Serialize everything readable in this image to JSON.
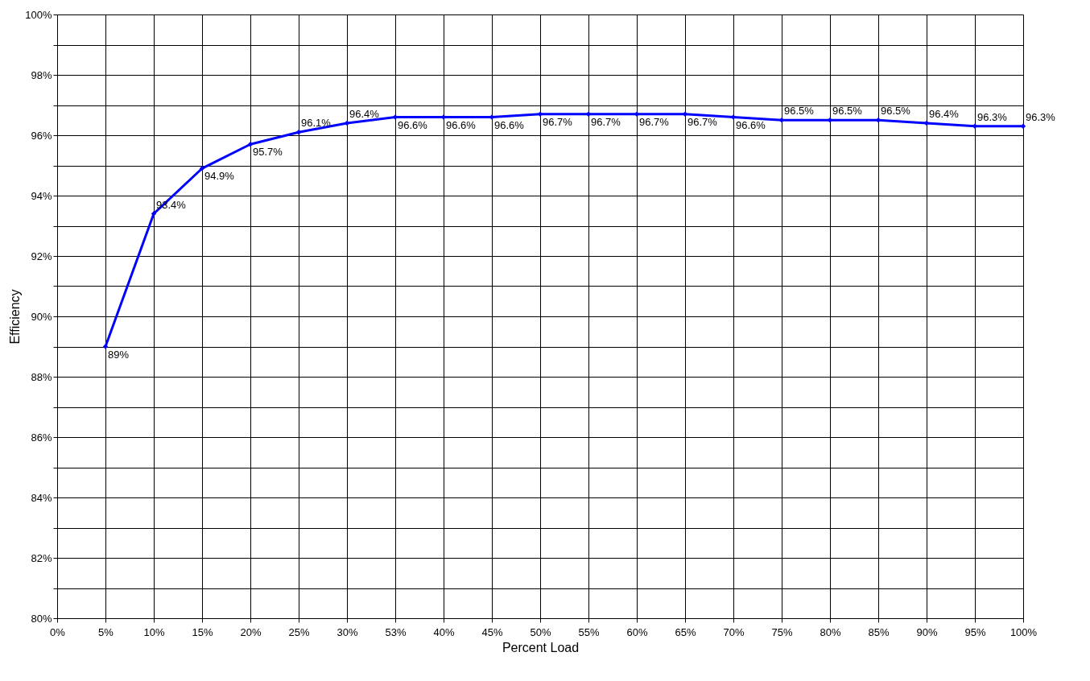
{
  "chart_data": {
    "type": "line",
    "xlabel": "Percent Load",
    "ylabel": "Efficiency",
    "categories": [
      "0%",
      "5%",
      "10%",
      "15%",
      "20%",
      "25%",
      "30%",
      "53%",
      "40%",
      "45%",
      "50%",
      "55%",
      "60%",
      "65%",
      "70%",
      "75%",
      "80%",
      "85%",
      "90%",
      "95%",
      "100%"
    ],
    "series": [
      {
        "color": "#0000ff",
        "values": [
          null,
          89,
          93.4,
          94.9,
          95.7,
          96.1,
          96.4,
          96.6,
          96.6,
          96.6,
          96.7,
          96.7,
          96.7,
          96.7,
          96.6,
          96.5,
          96.5,
          96.5,
          96.4,
          96.3,
          96.3
        ],
        "value_labels": [
          null,
          "89%",
          "93.4%",
          "94.9%",
          "95.7%",
          "96.1%",
          "96.4%",
          "96.6%",
          "96.6%",
          "96.6%",
          "96.7%",
          "96.7%",
          "96.7%",
          "96.7%",
          "96.6%",
          "96.5%",
          "96.5%",
          "96.5%",
          "96.4%",
          "96.3%",
          "96.3%"
        ]
      }
    ],
    "ylim": [
      80,
      100
    ],
    "yticks": [
      {
        "value": 80,
        "label": "80%"
      },
      {
        "value": 81,
        "label": null
      },
      {
        "value": 82,
        "label": "82%"
      },
      {
        "value": 83,
        "label": null
      },
      {
        "value": 84,
        "label": "84%"
      },
      {
        "value": 85,
        "label": null
      },
      {
        "value": 86,
        "label": "86%"
      },
      {
        "value": 87,
        "label": null
      },
      {
        "value": 88,
        "label": "88%"
      },
      {
        "value": 89,
        "label": null
      },
      {
        "value": 90,
        "label": "90%"
      },
      {
        "value": 91,
        "label": null
      },
      {
        "value": 92,
        "label": "92%"
      },
      {
        "value": 93,
        "label": null
      },
      {
        "value": 94,
        "label": "94%"
      },
      {
        "value": 95,
        "label": null
      },
      {
        "value": 96,
        "label": "96%"
      },
      {
        "value": 97,
        "label": null
      },
      {
        "value": 98,
        "label": "98%"
      },
      {
        "value": 99,
        "label": null
      },
      {
        "value": 100,
        "label": "100%"
      }
    ],
    "grid": true,
    "marker": "diamond",
    "line_style": "solid"
  }
}
